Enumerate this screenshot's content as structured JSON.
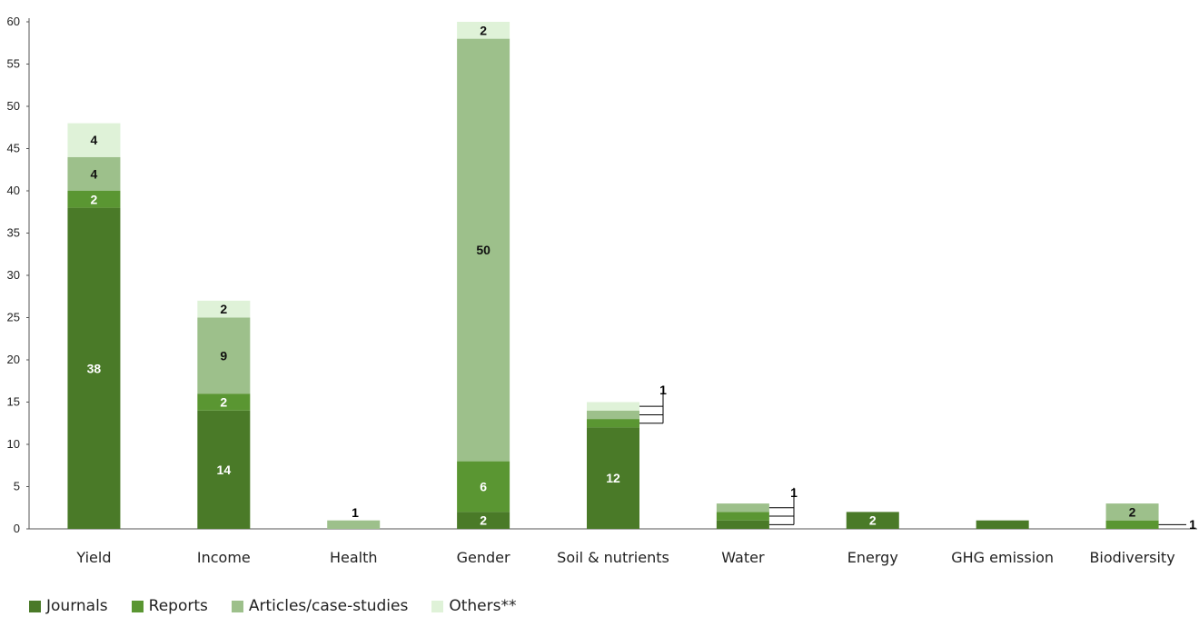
{
  "chart_data": {
    "type": "bar",
    "stacked": true,
    "categories": [
      "Yield",
      "Income",
      "Health",
      "Gender",
      "Soil & nutrients",
      "Water",
      "Energy",
      "GHG emission",
      "Biodiversity"
    ],
    "series": [
      {
        "name": "Journals",
        "color": "#4a7a28",
        "values": [
          38,
          14,
          0,
          2,
          12,
          1,
          2,
          1,
          0
        ]
      },
      {
        "name": "Reports",
        "color": "#5a9632",
        "values": [
          2,
          2,
          0,
          6,
          1,
          1,
          0,
          0,
          1
        ]
      },
      {
        "name": "Articles/case-studies",
        "color": "#9dc08b",
        "values": [
          4,
          9,
          1,
          50,
          1,
          1,
          0,
          0,
          2
        ]
      },
      {
        "name": "Others**",
        "color": "#dff2d8",
        "values": [
          4,
          2,
          0,
          2,
          1,
          0,
          0,
          0,
          0
        ]
      }
    ],
    "ylim": [
      0,
      60
    ],
    "yticks": [
      0,
      5,
      10,
      15,
      20,
      25,
      30,
      35,
      40,
      45,
      50,
      55,
      60
    ],
    "grid": false,
    "legend_position": "bottom-left",
    "callouts": [
      "1",
      "1",
      "1",
      "1"
    ]
  }
}
